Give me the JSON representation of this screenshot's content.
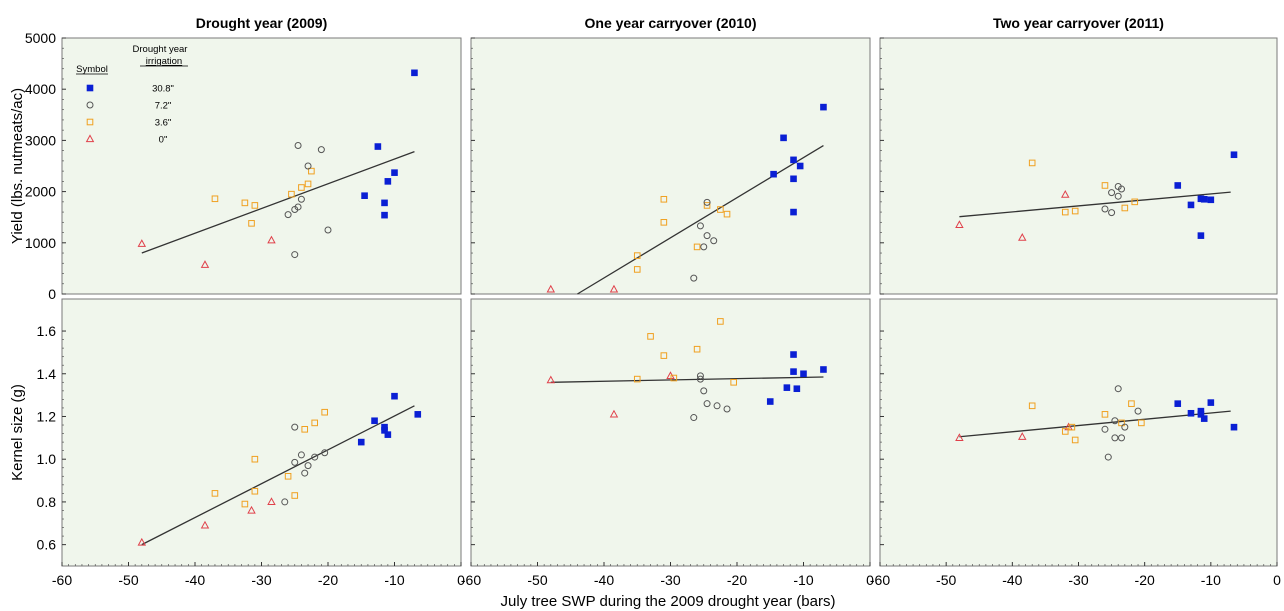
{
  "chart_data": {
    "type": "scatter",
    "xlabel": "July tree SWP during the 2009 drought year (bars)",
    "x_ticks": [
      "-60",
      "-50",
      "-40",
      "-30",
      "-20",
      "-10",
      "0"
    ],
    "xlim": [
      -60,
      0
    ],
    "colors": {
      "s30_8": "#0a1fd4",
      "s7_2": "#555555",
      "s3_6": "#f0a020",
      "s0": "#e0404a",
      "panel_bg": "#f0f6ec",
      "trend": "#333333"
    },
    "legend": {
      "header_symbol": "Symbol",
      "header_irr_line1": "Drought year",
      "header_irr_line2": "irrigation",
      "items": [
        {
          "key": "s30_8",
          "label": "30.8\"",
          "marker": "filled-square"
        },
        {
          "key": "s7_2",
          "label": "7.2\"",
          "marker": "open-circle"
        },
        {
          "key": "s3_6",
          "label": "3.6\"",
          "marker": "open-square"
        },
        {
          "key": "s0",
          "label": "0\"",
          "marker": "open-triangle"
        }
      ]
    },
    "rows": [
      {
        "ylabel": "Yield (lbs. nutmeats/ac)",
        "ylim": [
          0,
          5000
        ],
        "y_ticks": [
          "0",
          "1000",
          "2000",
          "3000",
          "4000",
          "5000"
        ],
        "y_tick_values": [
          0,
          1000,
          2000,
          3000,
          4000,
          5000
        ]
      },
      {
        "ylabel": "Kernel size (g)",
        "ylim": [
          0.5,
          1.75
        ],
        "y_ticks": [
          "0.6",
          "0.8",
          "1.0",
          "1.2",
          "1.4",
          "1.6"
        ],
        "y_tick_values": [
          0.6,
          0.8,
          1.0,
          1.2,
          1.4,
          1.6
        ]
      }
    ],
    "panels": [
      {
        "title": "Drought year (2009)",
        "row": 0,
        "col": 0,
        "trend": {
          "x": [
            -48,
            -7
          ],
          "y": [
            800,
            2780
          ]
        },
        "series": {
          "s30_8": [
            [
              -7,
              4320
            ],
            [
              -12.5,
              2880
            ],
            [
              -10,
              2370
            ],
            [
              -11,
              2200
            ],
            [
              -14.5,
              1920
            ],
            [
              -11.5,
              1780
            ],
            [
              -11.5,
              1540
            ]
          ],
          "s7_2": [
            [
              -24.5,
              2900
            ],
            [
              -21,
              2820
            ],
            [
              -23,
              2500
            ],
            [
              -24,
              1850
            ],
            [
              -24.5,
              1700
            ],
            [
              -25,
              1650
            ],
            [
              -26,
              1550
            ],
            [
              -20,
              1250
            ],
            [
              -25,
              770
            ]
          ],
          "s3_6": [
            [
              -37,
              1860
            ],
            [
              -32.5,
              1780
            ],
            [
              -31,
              1730
            ],
            [
              -25.5,
              1950
            ],
            [
              -24,
              2080
            ],
            [
              -23,
              2150
            ],
            [
              -22.5,
              2400
            ],
            [
              -31.5,
              1380
            ]
          ],
          "s0": [
            [
              -48,
              980
            ],
            [
              -38.5,
              570
            ],
            [
              -28.5,
              1050
            ]
          ]
        }
      },
      {
        "title": "One year carryover (2010)",
        "row": 0,
        "col": 1,
        "trend": {
          "x": [
            -44,
            -7
          ],
          "y": [
            0,
            2900
          ]
        },
        "series": {
          "s30_8": [
            [
              -7,
              3650
            ],
            [
              -13,
              3050
            ],
            [
              -11.5,
              2620
            ],
            [
              -10.5,
              2500
            ],
            [
              -14.5,
              2340
            ],
            [
              -11.5,
              2250
            ],
            [
              -11.5,
              1600
            ]
          ],
          "s7_2": [
            [
              -24.5,
              1790
            ],
            [
              -25.5,
              1330
            ],
            [
              -24.5,
              1140
            ],
            [
              -23.5,
              1040
            ],
            [
              -25,
              920
            ],
            [
              -26.5,
              310
            ]
          ],
          "s3_6": [
            [
              -31,
              1850
            ],
            [
              -24.5,
              1730
            ],
            [
              -22.5,
              1650
            ],
            [
              -21.5,
              1560
            ],
            [
              -31,
              1400
            ],
            [
              -35,
              750
            ],
            [
              -35,
              480
            ],
            [
              -26,
              920
            ]
          ],
          "s0": [
            [
              -48,
              90
            ],
            [
              -38.5,
              90
            ]
          ]
        }
      },
      {
        "title": "Two year carryover (2011)",
        "row": 0,
        "col": 2,
        "trend": {
          "x": [
            -48,
            -7
          ],
          "y": [
            1510,
            1990
          ]
        },
        "series": {
          "s30_8": [
            [
              -6.5,
              2720
            ],
            [
              -15,
              2120
            ],
            [
              -11.5,
              1860
            ],
            [
              -11,
              1850
            ],
            [
              -10,
              1840
            ],
            [
              -13,
              1740
            ],
            [
              -11.5,
              1140
            ]
          ],
          "s7_2": [
            [
              -24,
              2100
            ],
            [
              -23.5,
              2050
            ],
            [
              -25,
              1980
            ],
            [
              -24,
              1910
            ],
            [
              -26,
              1660
            ],
            [
              -25,
              1590
            ]
          ],
          "s3_6": [
            [
              -37,
              2560
            ],
            [
              -26,
              2120
            ],
            [
              -21.5,
              1800
            ],
            [
              -23,
              1680
            ],
            [
              -32,
              1600
            ],
            [
              -30.5,
              1620
            ]
          ],
          "s0": [
            [
              -48,
              1350
            ],
            [
              -38.5,
              1100
            ],
            [
              -32,
              1940
            ]
          ]
        }
      },
      {
        "title": "",
        "row": 1,
        "col": 0,
        "trend": {
          "x": [
            -48,
            -7
          ],
          "y": [
            0.6,
            1.25
          ]
        },
        "series": {
          "s30_8": [
            [
              -10,
              1.295
            ],
            [
              -6.5,
              1.21
            ],
            [
              -13,
              1.18
            ],
            [
              -11.5,
              1.15
            ],
            [
              -11.5,
              1.135
            ],
            [
              -11,
              1.115
            ],
            [
              -15,
              1.08
            ]
          ],
          "s7_2": [
            [
              -25,
              1.15
            ],
            [
              -24,
              1.02
            ],
            [
              -20.5,
              1.03
            ],
            [
              -22,
              1.01
            ],
            [
              -25,
              0.985
            ],
            [
              -23,
              0.97
            ],
            [
              -23.5,
              0.935
            ],
            [
              -26.5,
              0.8
            ]
          ],
          "s3_6": [
            [
              -20.5,
              1.22
            ],
            [
              -22,
              1.17
            ],
            [
              -23.5,
              1.14
            ],
            [
              -31,
              1.0
            ],
            [
              -37,
              0.84
            ],
            [
              -26,
              0.92
            ],
            [
              -25,
              0.83
            ],
            [
              -32.5,
              0.79
            ],
            [
              -31,
              0.85
            ]
          ],
          "s0": [
            [
              -48,
              0.61
            ],
            [
              -38.5,
              0.69
            ],
            [
              -28.5,
              0.8
            ],
            [
              -31.5,
              0.76
            ]
          ]
        }
      },
      {
        "title": "",
        "row": 1,
        "col": 1,
        "trend": {
          "x": [
            -48,
            -7
          ],
          "y": [
            1.36,
            1.385
          ]
        },
        "series": {
          "s30_8": [
            [
              -11.5,
              1.49
            ],
            [
              -7,
              1.42
            ],
            [
              -11.5,
              1.41
            ],
            [
              -10,
              1.4
            ],
            [
              -12.5,
              1.335
            ],
            [
              -11,
              1.33
            ],
            [
              -15,
              1.27
            ]
          ],
          "s7_2": [
            [
              -25.5,
              1.39
            ],
            [
              -25.5,
              1.375
            ],
            [
              -25,
              1.32
            ],
            [
              -24.5,
              1.26
            ],
            [
              -23,
              1.25
            ],
            [
              -21.5,
              1.235
            ],
            [
              -26.5,
              1.195
            ]
          ],
          "s3_6": [
            [
              -22.5,
              1.645
            ],
            [
              -33,
              1.575
            ],
            [
              -26,
              1.515
            ],
            [
              -31,
              1.485
            ],
            [
              -29.5,
              1.38
            ],
            [
              -35,
              1.375
            ],
            [
              -20.5,
              1.36
            ]
          ],
          "s0": [
            [
              -48,
              1.37
            ],
            [
              -38.5,
              1.21
            ],
            [
              -30,
              1.39
            ]
          ]
        }
      },
      {
        "title": "",
        "row": 1,
        "col": 2,
        "trend": {
          "x": [
            -48,
            -7
          ],
          "y": [
            1.105,
            1.225
          ]
        },
        "series": {
          "s30_8": [
            [
              -10,
              1.265
            ],
            [
              -15,
              1.26
            ],
            [
              -11.5,
              1.225
            ],
            [
              -13,
              1.215
            ],
            [
              -11.5,
              1.21
            ],
            [
              -11,
              1.19
            ],
            [
              -6.5,
              1.15
            ]
          ],
          "s7_2": [
            [
              -24,
              1.33
            ],
            [
              -21,
              1.225
            ],
            [
              -24.5,
              1.18
            ],
            [
              -23,
              1.15
            ],
            [
              -26,
              1.14
            ],
            [
              -24.5,
              1.1
            ],
            [
              -23.5,
              1.1
            ],
            [
              -25.5,
              1.01
            ]
          ],
          "s3_6": [
            [
              -37,
              1.25
            ],
            [
              -22,
              1.26
            ],
            [
              -26,
              1.21
            ],
            [
              -20.5,
              1.17
            ],
            [
              -23.5,
              1.17
            ],
            [
              -30.5,
              1.09
            ],
            [
              -32,
              1.13
            ],
            [
              -31,
              1.15
            ]
          ],
          "s0": [
            [
              -48,
              1.1
            ],
            [
              -38.5,
              1.105
            ],
            [
              -31.5,
              1.15
            ]
          ]
        }
      }
    ]
  }
}
